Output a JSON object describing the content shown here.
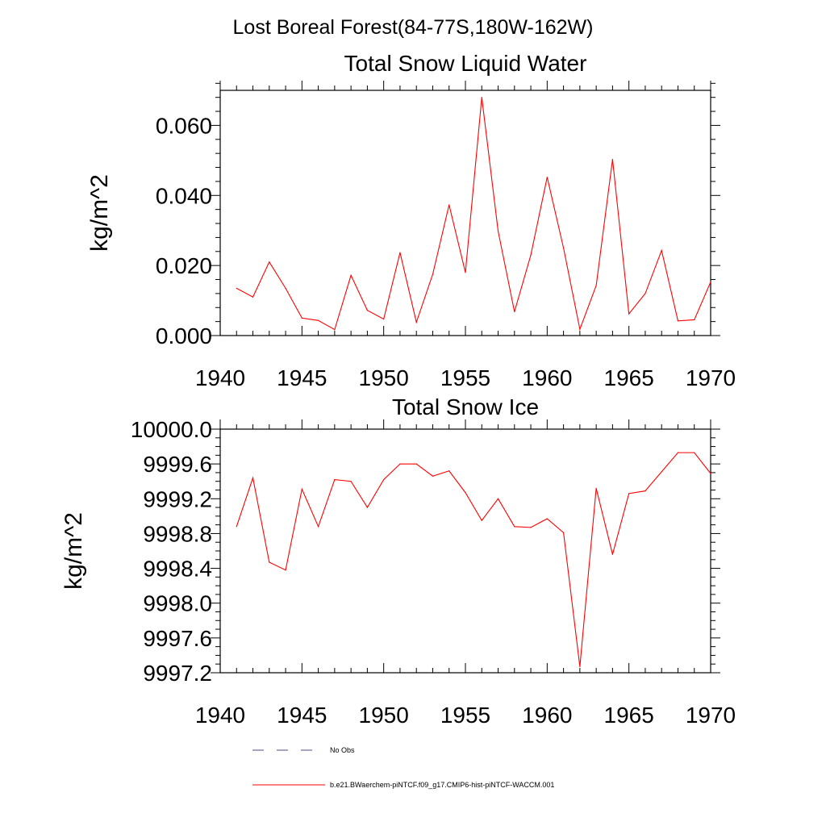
{
  "figure": {
    "title": "Lost Boreal Forest(84-77S,180W-162W)"
  },
  "chart_data": [
    {
      "type": "line",
      "title": "Total Snow Liquid Water",
      "xlabel": "",
      "ylabel": "kg/m^2",
      "xlim": [
        1940,
        1970
      ],
      "ylim": [
        0.0,
        0.07
      ],
      "x_ticks": [
        1940,
        1945,
        1950,
        1955,
        1960,
        1965,
        1970
      ],
      "y_ticks": [
        0.0,
        0.02,
        0.04,
        0.06
      ],
      "y_tick_labels": [
        "0.000",
        "0.020",
        "0.040",
        "0.060"
      ],
      "grid": false,
      "series": [
        {
          "name": "b.e21.BWaerchem-piNTCF.f09_g17.CMIP6-hist-piNTCF-WACCM.001",
          "color": "#ff0000",
          "x": [
            1941,
            1942,
            1943,
            1944,
            1945,
            1946,
            1947,
            1948,
            1949,
            1950,
            1951,
            1952,
            1953,
            1954,
            1955,
            1956,
            1957,
            1958,
            1959,
            1960,
            1961,
            1962,
            1963,
            1964,
            1965,
            1966,
            1967,
            1968,
            1969,
            1970
          ],
          "y": [
            0.0135,
            0.011,
            0.021,
            0.0135,
            0.005,
            0.0043,
            0.0017,
            0.0172,
            0.0072,
            0.0047,
            0.0237,
            0.0038,
            0.0175,
            0.0373,
            0.018,
            0.068,
            0.0298,
            0.0068,
            0.023,
            0.0452,
            0.025,
            0.0018,
            0.0143,
            0.0503,
            0.0062,
            0.012,
            0.0243,
            0.0042,
            0.0045,
            0.0153
          ]
        }
      ]
    },
    {
      "type": "line",
      "title": "Total Snow Ice",
      "xlabel": "",
      "ylabel": "kg/m^2",
      "xlim": [
        1940,
        1970
      ],
      "ylim": [
        9997.2,
        10000.0
      ],
      "x_ticks": [
        1940,
        1945,
        1950,
        1955,
        1960,
        1965,
        1970
      ],
      "y_ticks": [
        9997.2,
        9997.6,
        9998.0,
        9998.4,
        9998.8,
        9999.2,
        9999.6,
        10000.0
      ],
      "y_tick_labels": [
        "9997.2",
        "9997.6",
        "9998.0",
        "9998.4",
        "9998.8",
        "9999.2",
        "9999.6",
        "10000.0"
      ],
      "grid": false,
      "series": [
        {
          "name": "b.e21.BWaerchem-piNTCF.f09_g17.CMIP6-hist-piNTCF-WACCM.001",
          "color": "#ff0000",
          "x": [
            1941,
            1942,
            1943,
            1944,
            1945,
            1946,
            1947,
            1948,
            1949,
            1950,
            1951,
            1952,
            1953,
            1954,
            1955,
            1956,
            1957,
            1958,
            1959,
            1960,
            1961,
            1962,
            1963,
            1964,
            1965,
            1966,
            1967,
            1968,
            1969,
            1970
          ],
          "y": [
            9998.88,
            9999.44,
            9998.47,
            9998.38,
            9999.31,
            9998.88,
            9999.42,
            9999.4,
            9999.1,
            9999.42,
            9999.6,
            9999.6,
            9999.46,
            9999.52,
            9999.27,
            9998.95,
            9999.2,
            9998.88,
            9998.87,
            9998.97,
            9998.81,
            9997.27,
            9999.32,
            9998.56,
            9999.26,
            9999.29,
            9999.51,
            9999.73,
            9999.73,
            9999.49
          ]
        }
      ]
    }
  ],
  "legend": {
    "placement": "bottom-center",
    "items": [
      {
        "label": "No Obs",
        "style": "dashed",
        "color": "#4a4a8a"
      },
      {
        "label": "b.e21.BWaerchem-piNTCF.f09_g17.CMIP6-hist-piNTCF-WACCM.001",
        "style": "solid",
        "color": "#ff0000"
      }
    ]
  }
}
